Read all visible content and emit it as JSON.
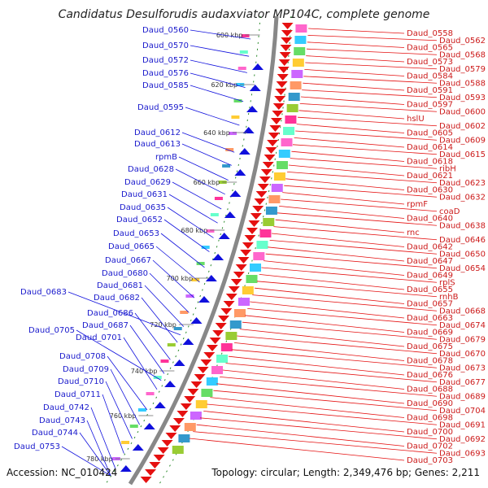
{
  "title": "Candidatus Desulforudis audaxviator MP104C, complete genome",
  "accession": "Accession: NC_010424",
  "topology": "Topology: circular; Length: 2,349,476 bp; Genes: 2,211",
  "ticks": [
    "600 kbp",
    "620 kbp",
    "640 kbp",
    "660 kbp",
    "680 kbp",
    "700 kbp",
    "720 kbp",
    "740 kbp",
    "760 kbp",
    "780 kbp"
  ],
  "left_labels": [
    "Daud_0560",
    "Daud_0570",
    "Daud_0572",
    "Daud_0576",
    "Daud_0585",
    "Daud_0595",
    "Daud_0612",
    "Daud_0613",
    "rpmB",
    "Daud_0628",
    "Daud_0629",
    "Daud_0631",
    "Daud_0635",
    "Daud_0652",
    "Daud_0653",
    "Daud_0665",
    "Daud_0667",
    "Daud_0680",
    "Daud_0681",
    "Daud_0683",
    "Daud_0682",
    "Daud_0686",
    "Daud_0687",
    "Daud_0705",
    "Daud_0701",
    "Daud_0708",
    "Daud_0709",
    "Daud_0710",
    "Daud_0711",
    "Daud_0742",
    "Daud_0743",
    "Daud_0744",
    "Daud_0753"
  ],
  "right_labels": [
    "Daud_0558",
    "Daud_0562",
    "Daud_0565",
    "Daud_0568",
    "Daud_0573",
    "Daud_0579",
    "Daud_0584",
    "Daud_0588",
    "Daud_0591",
    "Daud_0593",
    "Daud_0597",
    "Daud_0600",
    "hslU",
    "Daud_0602",
    "Daud_0605",
    "Daud_0609",
    "Daud_0614",
    "Daud_0615",
    "Daud_0618",
    "ribH",
    "Daud_0621",
    "Daud_0623",
    "Daud_0630",
    "Daud_0632",
    "rpmF",
    "coaD",
    "Daud_0640",
    "Daud_0638",
    "rnc",
    "Daud_0646",
    "Daud_0642",
    "Daud_0650",
    "Daud_0647",
    "Daud_0654",
    "Daud_0649",
    "rplS",
    "Daud_0655",
    "rnhB",
    "Daud_0657",
    "Daud_0668",
    "Daud_0663",
    "Daud_0674",
    "Daud_0669",
    "Daud_0679",
    "Daud_0675",
    "Daud_0670",
    "Daud_0678",
    "Daud_0673",
    "Daud_0676",
    "Daud_0677",
    "Daud_0688",
    "Daud_0689",
    "Daud_0690",
    "Daud_0704",
    "Daud_0698",
    "Daud_0691",
    "Daud_0700",
    "Daud_0692",
    "Daud_0702",
    "Daud_0693",
    "Daud_0703"
  ],
  "colors": {
    "forward": "#e51010",
    "reverse": "#1010dd",
    "backbone": "#888888",
    "tick": "#2a8a2a"
  }
}
